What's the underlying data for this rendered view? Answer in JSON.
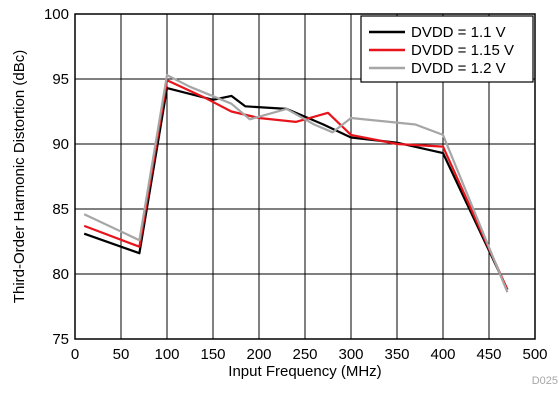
{
  "chart_data": {
    "type": "line",
    "xlabel": "Input Frequency (MHz)",
    "ylabel": "Third-Order Harmonic Distortion (dBc)",
    "xlim": [
      0,
      500
    ],
    "ylim": [
      75,
      100
    ],
    "xticks": [
      0,
      50,
      100,
      150,
      200,
      250,
      300,
      350,
      400,
      450,
      500
    ],
    "yticks": [
      75,
      80,
      85,
      90,
      95,
      100
    ],
    "grid": true,
    "legend_position": "top-right",
    "figure_id": "D025",
    "series": [
      {
        "name": "DVDD = 1.1 V",
        "color": "#000000",
        "x": [
          10,
          70,
          100,
          150,
          170,
          185,
          230,
          270,
          300,
          350,
          400,
          470
        ],
        "y": [
          83.1,
          81.6,
          94.3,
          93.4,
          93.7,
          92.9,
          92.7,
          91.5,
          90.5,
          90.1,
          89.3,
          78.8
        ]
      },
      {
        "name": "DVDD = 1.15 V",
        "color": "#e8141c",
        "x": [
          10,
          70,
          100,
          140,
          170,
          200,
          240,
          275,
          300,
          350,
          400,
          470
        ],
        "y": [
          83.7,
          82.1,
          94.9,
          93.6,
          92.5,
          92.0,
          91.7,
          92.4,
          90.7,
          90.0,
          89.8,
          78.8
        ]
      },
      {
        "name": "DVDD = 1.2 V",
        "color": "#a6a6a6",
        "x": [
          10,
          70,
          100,
          125,
          170,
          190,
          230,
          260,
          280,
          300,
          370,
          400,
          470
        ],
        "y": [
          84.6,
          82.6,
          95.3,
          94.4,
          93.1,
          91.9,
          92.7,
          91.5,
          90.9,
          92.0,
          91.5,
          90.7,
          78.6
        ]
      }
    ]
  }
}
